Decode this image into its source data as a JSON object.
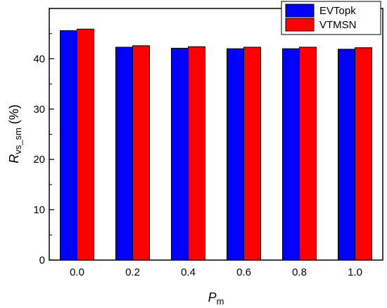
{
  "chart_data": {
    "type": "bar",
    "categories": [
      "0.0",
      "0.2",
      "0.4",
      "0.6",
      "0.8",
      "1.0"
    ],
    "series": [
      {
        "name": "EVTopk",
        "color": "#0000ff",
        "values": [
          45.6,
          42.3,
          42.1,
          42.0,
          42.0,
          41.9
        ]
      },
      {
        "name": "VTMSN",
        "color": "#ff0000",
        "values": [
          45.9,
          42.6,
          42.4,
          42.3,
          42.3,
          42.2
        ]
      }
    ],
    "xlabel": {
      "main": "P",
      "sub": "m"
    },
    "ylabel": {
      "main": "R",
      "sub": "vs_sm",
      "suffix": " (%)"
    },
    "ylim": [
      0,
      50
    ],
    "yticks": [
      0,
      10,
      20,
      30,
      40
    ],
    "grid": false,
    "legend_position": "top-right"
  }
}
